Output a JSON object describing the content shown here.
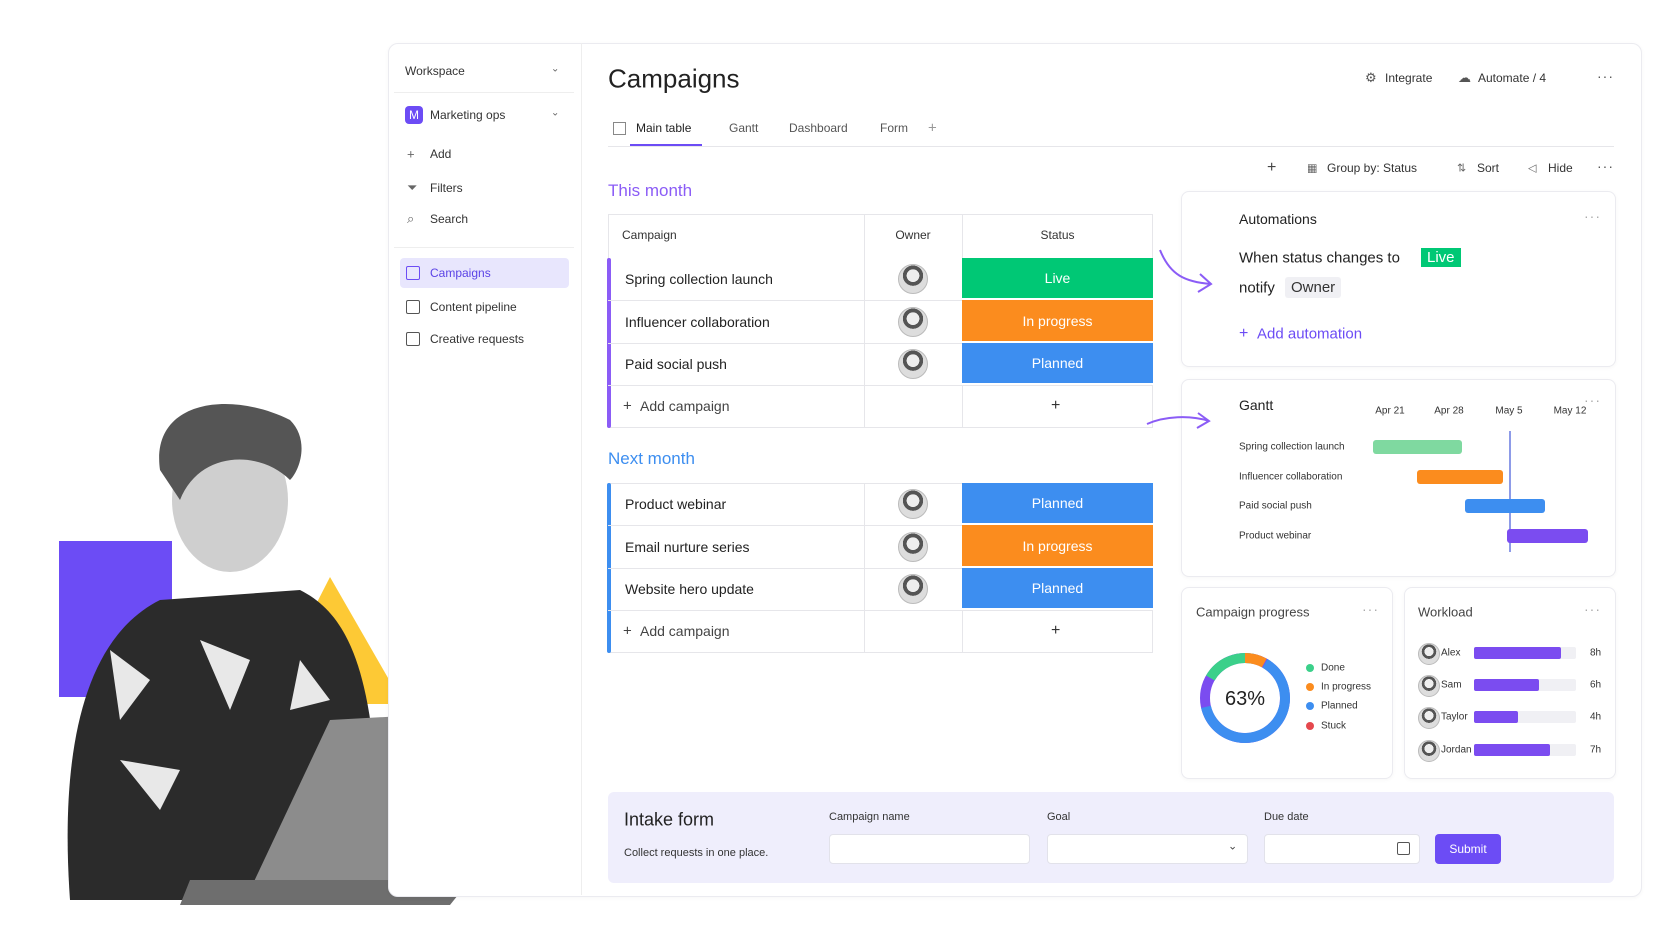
{
  "sidebar": {
    "workspace": "Workspace",
    "board_initial": "M",
    "board": "Marketing ops",
    "actions": [
      "Add",
      "Filters",
      "Search"
    ],
    "nav": [
      "Campaigns",
      "Content pipeline",
      "Creative requests"
    ]
  },
  "header": {
    "title": "Campaigns",
    "buttons": [
      "Integrate",
      "Automate / 4"
    ]
  },
  "tabs": [
    "Main table",
    "Gantt",
    "Dashboard",
    "Form"
  ],
  "toolbar": [
    "Group by: Status",
    "Sort",
    "Hide"
  ],
  "table": {
    "columns": [
      "Campaign",
      "Owner",
      "Status"
    ],
    "add_row": "Add campaign",
    "status_colors": {
      "Live": "#00c875",
      "In progress": "#fb8c1e",
      "Planned": "#3d8ef0"
    },
    "groups": [
      {
        "title": "This month",
        "color": "#8b5cf6",
        "rows": [
          {
            "campaign": "Spring collection launch",
            "status": "Live"
          },
          {
            "campaign": "Influencer collaboration",
            "status": "In progress"
          },
          {
            "campaign": "Paid social push",
            "status": "Planned"
          }
        ]
      },
      {
        "title": "Next month",
        "color": "#3d8ef0",
        "rows": [
          {
            "campaign": "Product webinar",
            "status": "Planned"
          },
          {
            "campaign": "Email nurture series",
            "status": "In progress"
          },
          {
            "campaign": "Website hero update",
            "status": "Planned"
          }
        ]
      }
    ]
  },
  "automations": {
    "title": "Automations",
    "trigger": "When status changes to",
    "trigger_value": "Live",
    "action": "notify",
    "action_value": "Owner",
    "add": "Add automation"
  },
  "gantt": {
    "title": "Gantt",
    "dates": [
      "Apr 21",
      "Apr 28",
      "May 5",
      "May 12"
    ],
    "tasks": [
      "Spring collection launch",
      "Influencer collaboration",
      "Paid social push",
      "Product webinar"
    ]
  },
  "progress": {
    "title": "Campaign progress",
    "value": 63,
    "value_label": "63%",
    "legend": [
      "Done",
      "In progress",
      "Planned",
      "Stuck"
    ]
  },
  "workload": {
    "title": "Workload",
    "people": [
      {
        "name": "Alex",
        "hours": 8,
        "label": "8h"
      },
      {
        "name": "Sam",
        "hours": 6,
        "label": "6h"
      },
      {
        "name": "Taylor",
        "hours": 4,
        "label": "4h"
      },
      {
        "name": "Jordan",
        "hours": 7,
        "label": "7h"
      }
    ]
  },
  "form": {
    "title": "Intake form",
    "subtitle": "Collect requests in one place.",
    "fields": [
      "Campaign name",
      "Goal",
      "Due date"
    ],
    "submit": "Submit"
  }
}
